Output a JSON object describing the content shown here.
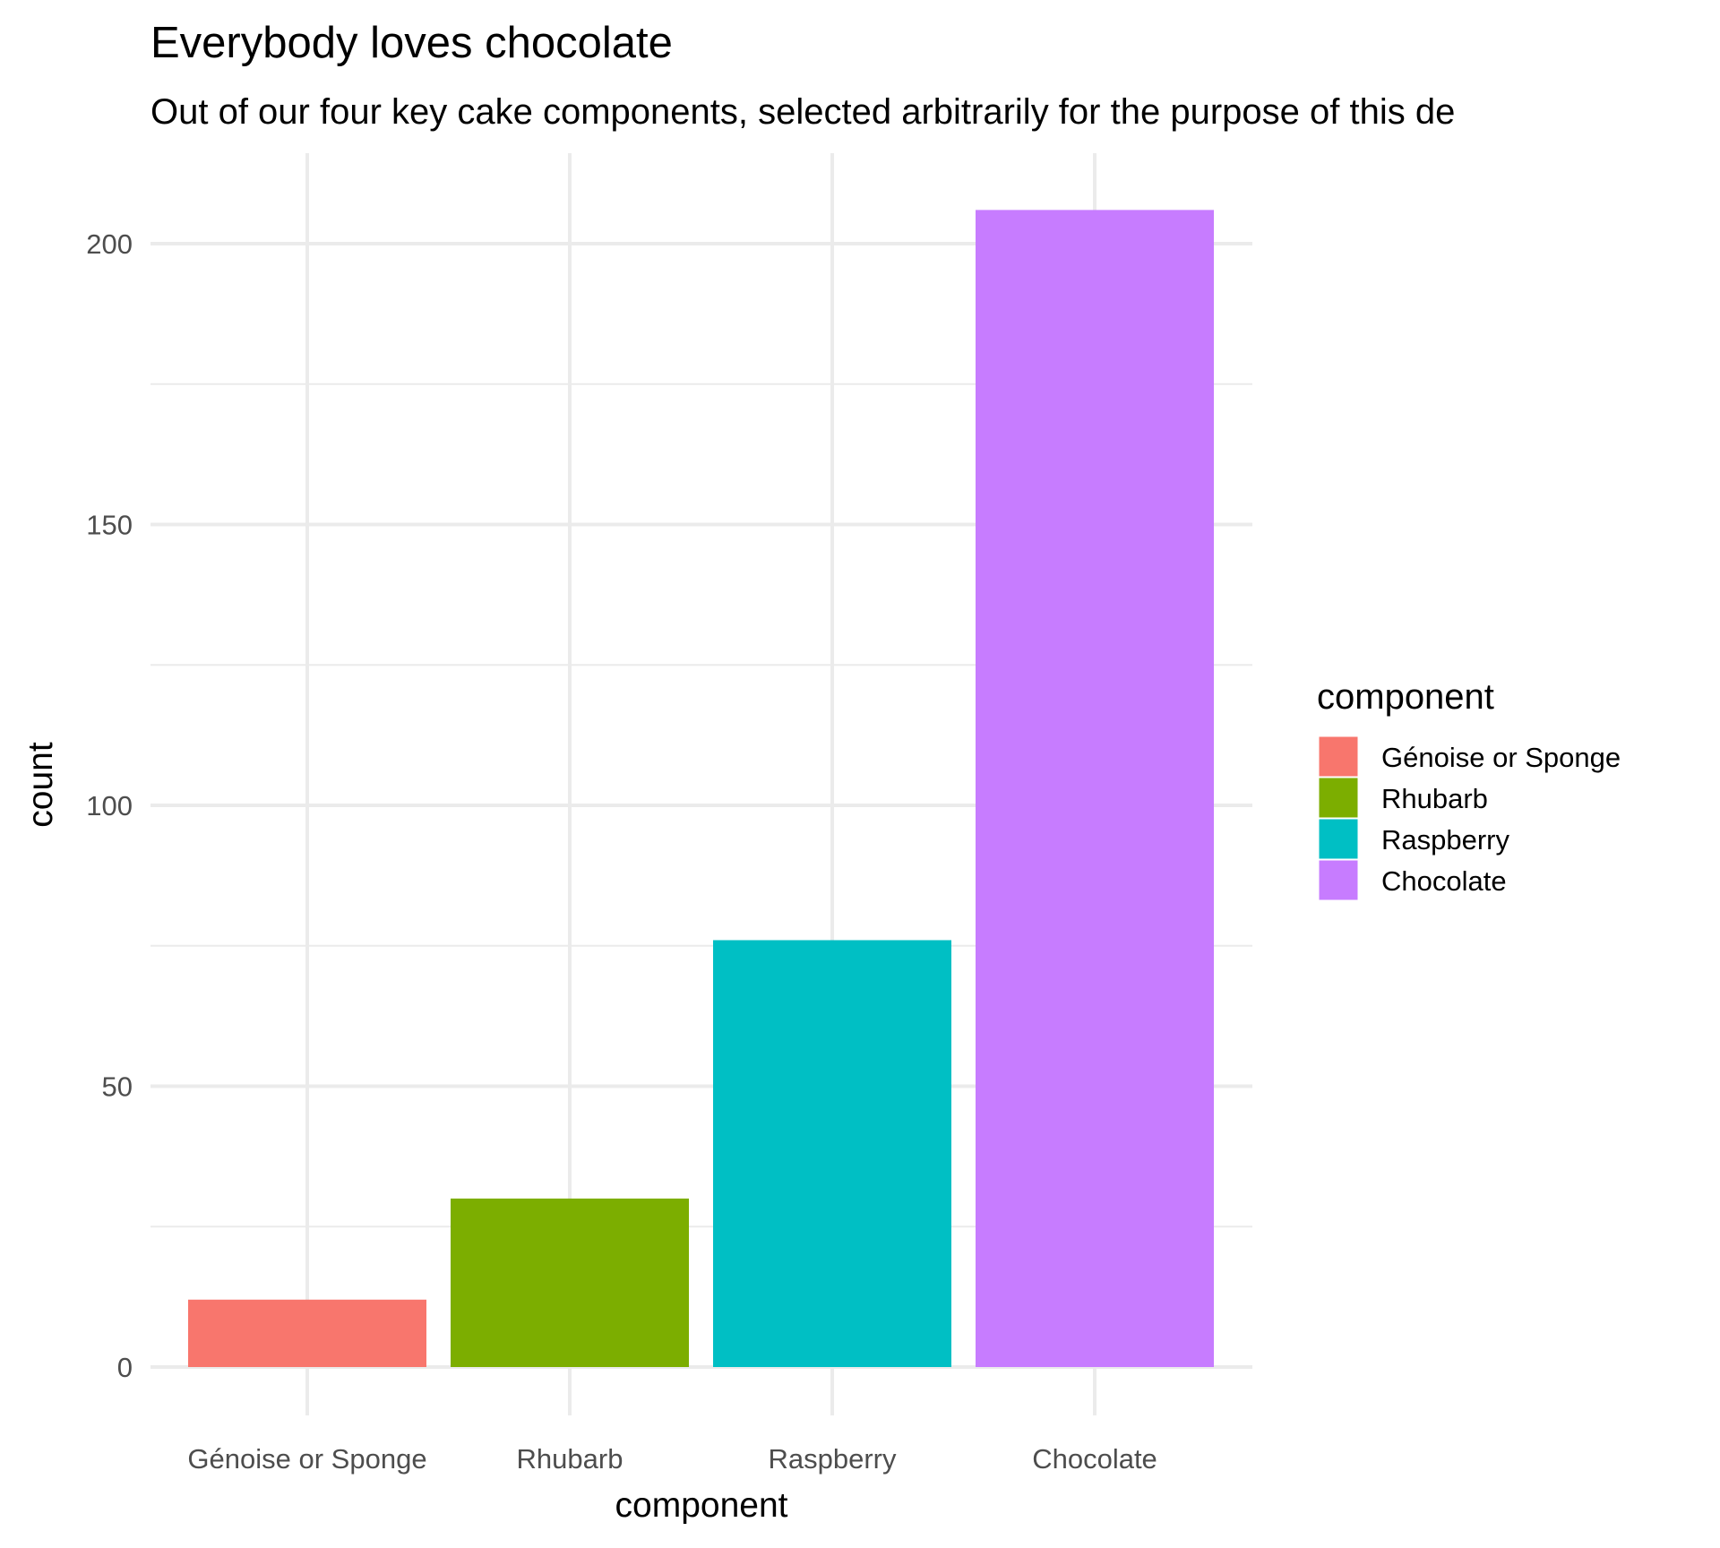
{
  "chart_data": {
    "type": "bar",
    "title": "Everybody loves chocolate",
    "subtitle": "Out of our four key cake components, selected arbitrarily for the purpose of this de",
    "xlabel": "component",
    "ylabel": "count",
    "categories": [
      "Génoise or Sponge",
      "Rhubarb",
      "Raspberry",
      "Chocolate"
    ],
    "values": [
      12,
      30,
      76,
      206
    ],
    "colors": [
      "#F8766D",
      "#7CAE00",
      "#00BFC4",
      "#C77CFF"
    ],
    "yticks": [
      0,
      50,
      100,
      150,
      200
    ],
    "ylim": [
      -10,
      216
    ],
    "grid": true,
    "legend": {
      "title": "component",
      "placement": "right",
      "entries": [
        "Génoise or Sponge",
        "Rhubarb",
        "Raspberry",
        "Chocolate"
      ]
    }
  }
}
